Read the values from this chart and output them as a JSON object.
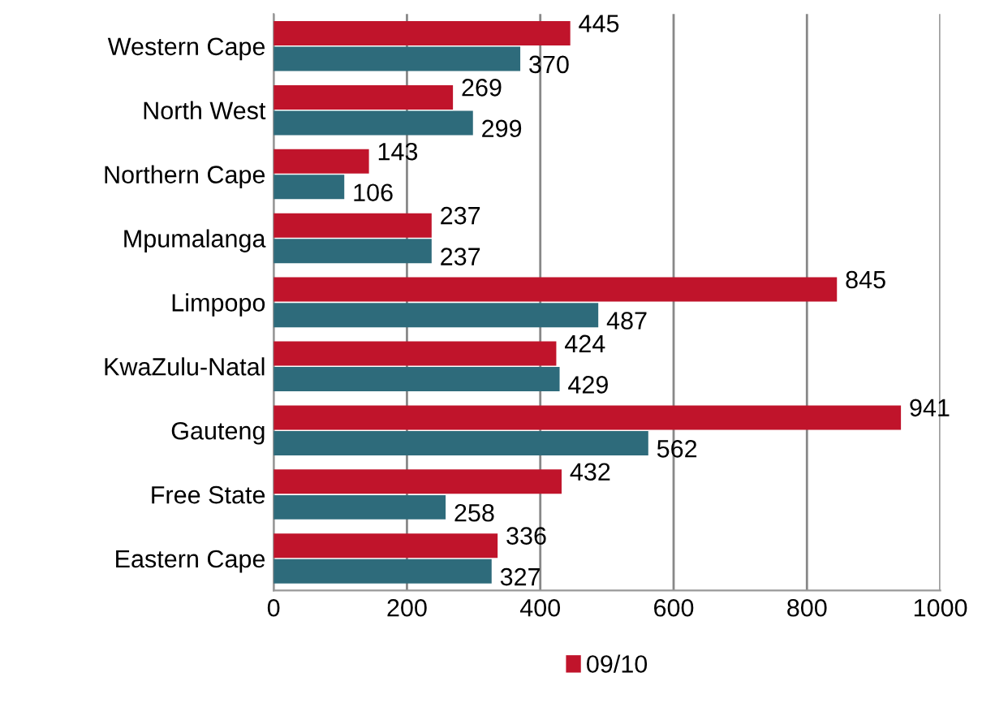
{
  "chart_data": {
    "type": "bar",
    "orientation": "horizontal",
    "categories": [
      "Western Cape",
      "North West",
      "Northern Cape",
      "Mpumalanga",
      "Limpopo",
      "KwaZulu-Natal",
      "Gauteng",
      "Free State",
      "Eastern Cape"
    ],
    "series": [
      {
        "name": "09/10",
        "color": "#c0142b",
        "values": [
          445,
          269,
          143,
          237,
          845,
          424,
          941,
          432,
          336
        ]
      },
      {
        "color": "#2e6b7b",
        "values": [
          370,
          299,
          106,
          237,
          487,
          429,
          562,
          258,
          327
        ]
      }
    ],
    "xlim": [
      0,
      1000
    ],
    "xticks": [
      0,
      200,
      400,
      600,
      800,
      1000
    ],
    "grid": "x",
    "legend": "bottom",
    "data_labels": true
  }
}
